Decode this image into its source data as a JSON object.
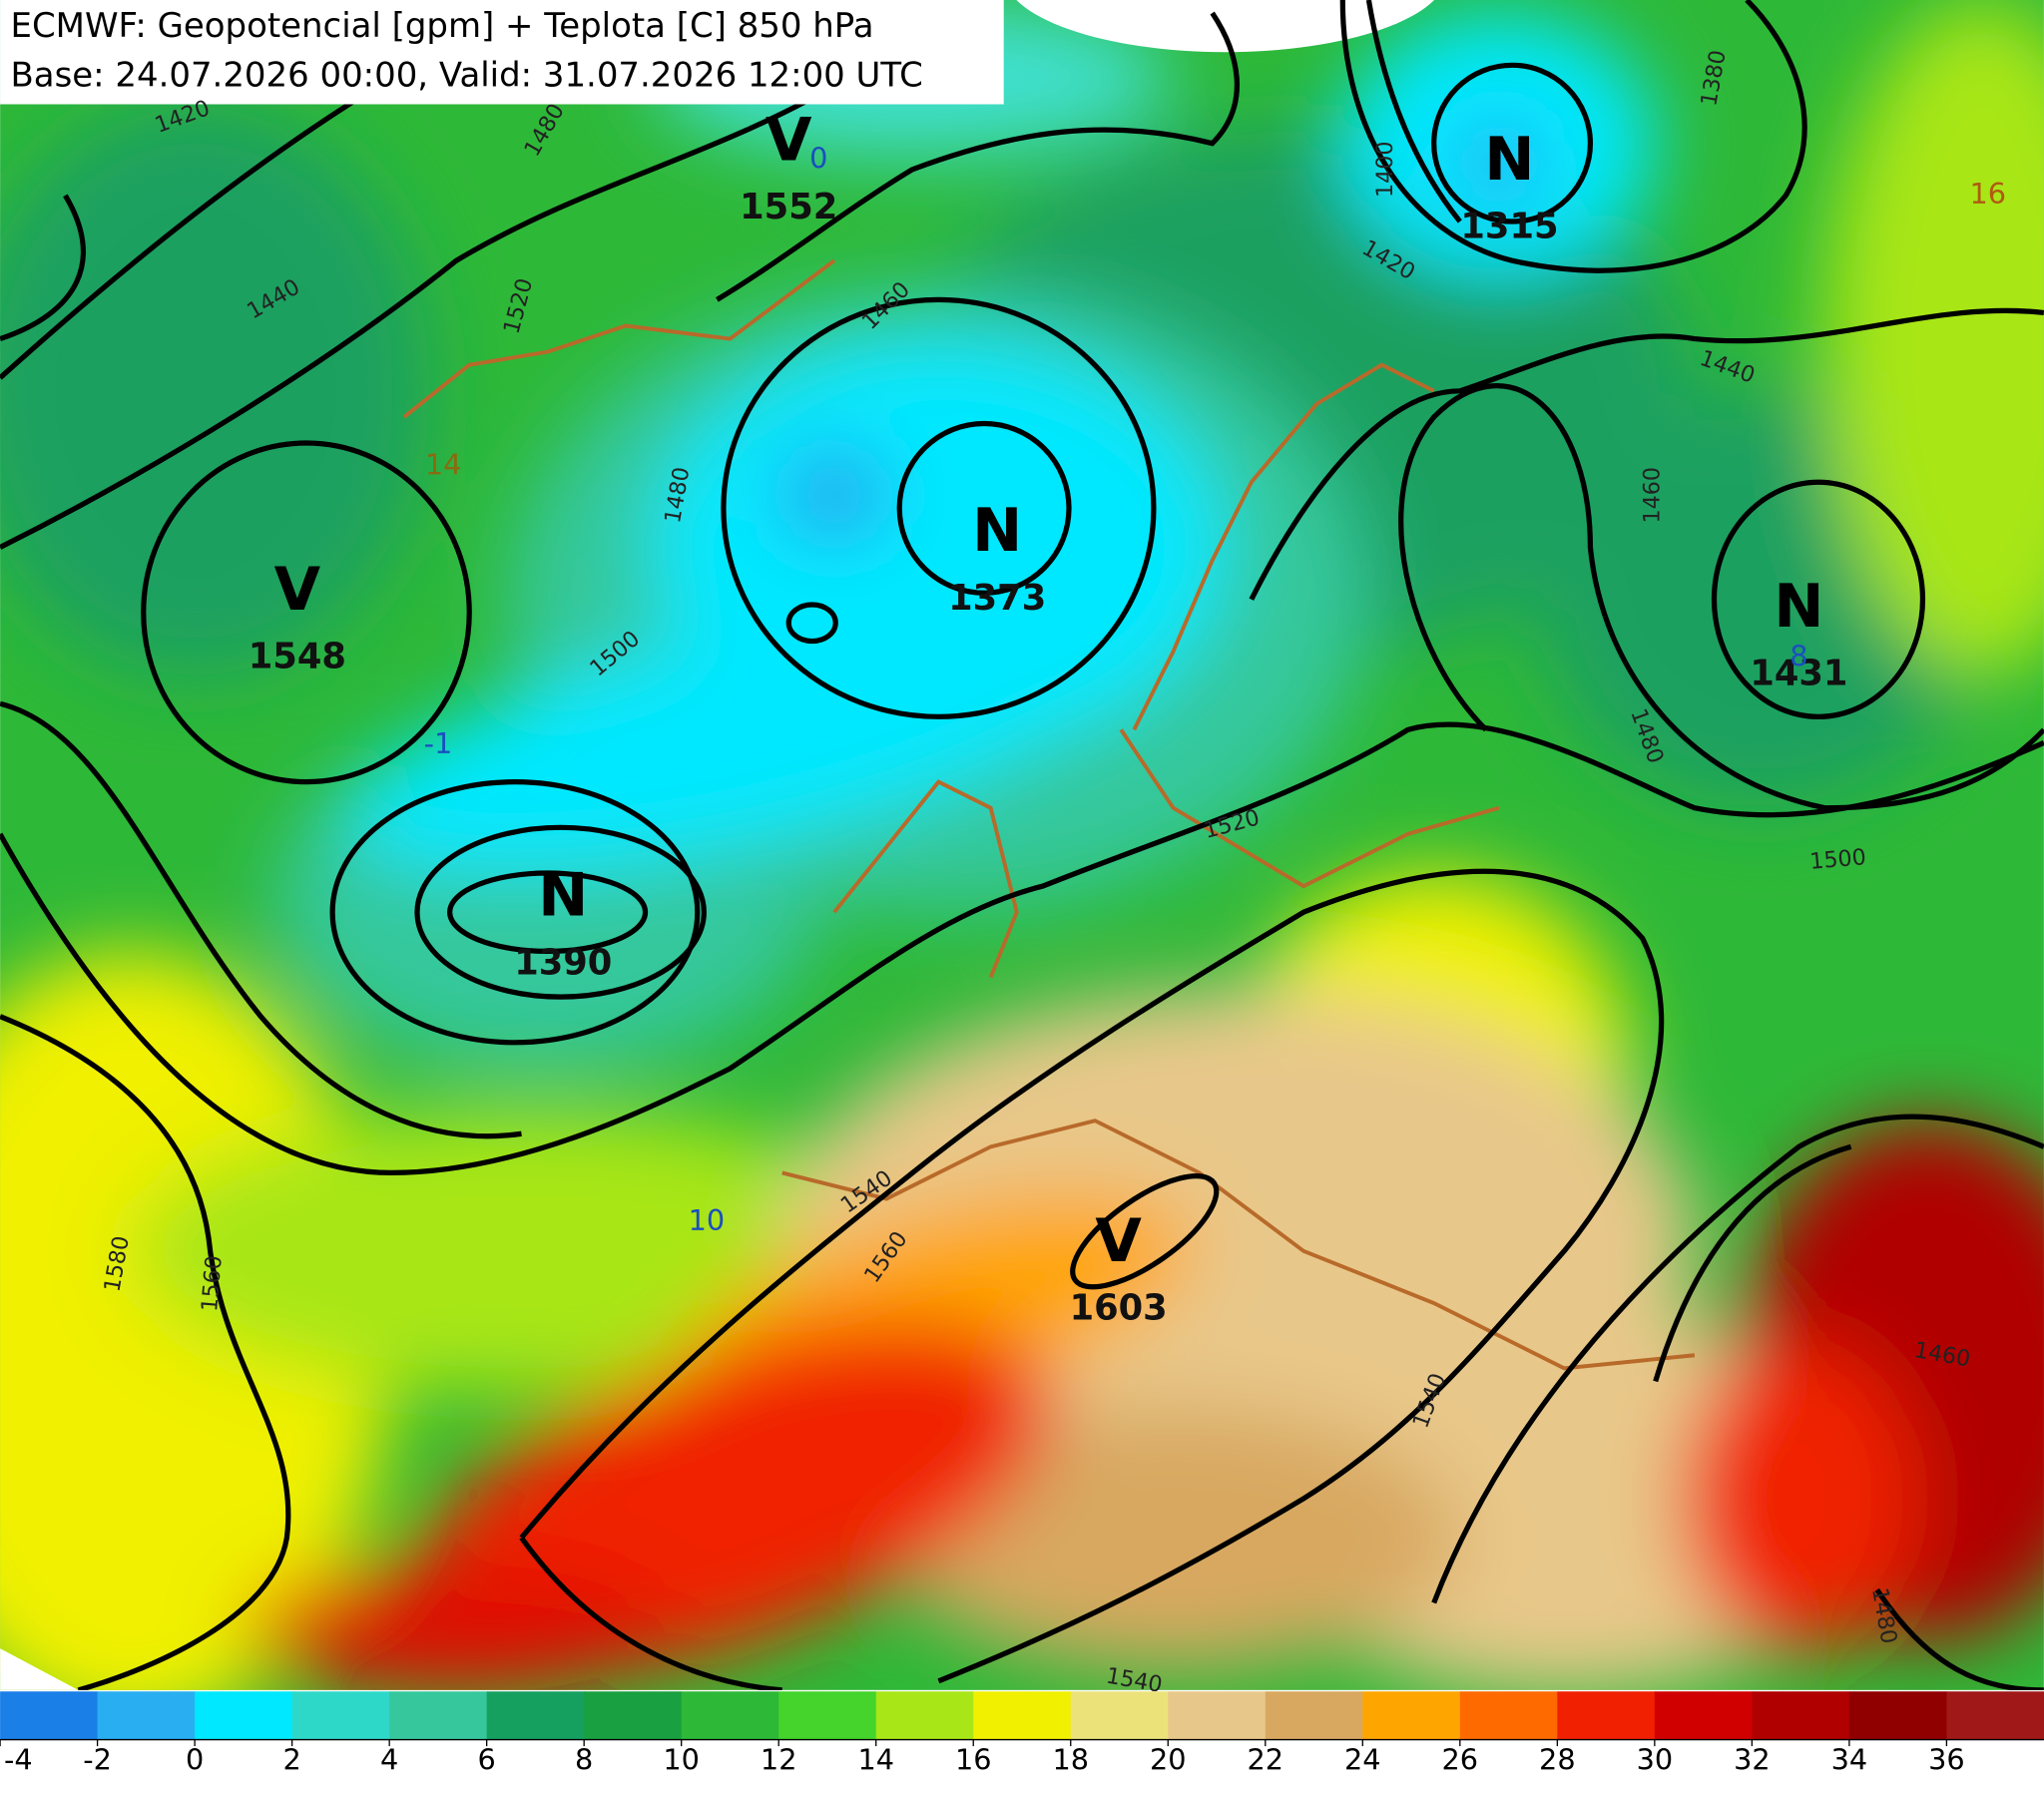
{
  "header": {
    "title": "ECMWF: Geopotencial [gpm] + Teplota [C] 850 hPa",
    "subtitle": "Base: 24.07.2026 00:00, Valid: 31.07.2026 12:00 UTC"
  },
  "centers": [
    {
      "symbol": "V",
      "value": "1552"
    },
    {
      "symbol": "N",
      "value": "1315"
    },
    {
      "symbol": "N",
      "value": "1373"
    },
    {
      "symbol": "V",
      "value": "1548"
    },
    {
      "symbol": "N",
      "value": "1431"
    },
    {
      "symbol": "N",
      "value": "1390"
    },
    {
      "symbol": "V",
      "value": "1603"
    }
  ],
  "contour_labels": [
    "1420",
    "1480",
    "1440",
    "1520",
    "1460",
    "1400",
    "1380",
    "1420",
    "1440",
    "1480",
    "1500",
    "1460",
    "1480",
    "1520",
    "1500",
    "1540",
    "1560",
    "1580",
    "1560",
    "1540",
    "1460",
    "1480",
    "1540"
  ],
  "temperature_labels": [
    "16",
    "14",
    "-1",
    "10",
    "0",
    "8"
  ],
  "colorbar": {
    "labels": [
      "-4",
      "-2",
      "0",
      "2",
      "4",
      "6",
      "8",
      "10",
      "12",
      "14",
      "16",
      "18",
      "20",
      "22",
      "24",
      "26",
      "28",
      "30",
      "32",
      "34",
      "36"
    ],
    "colors": [
      "#1b7fe8",
      "#2aaef2",
      "#00e8ff",
      "#2ed8c8",
      "#36c89c",
      "#16a060",
      "#19a040",
      "#2eb838",
      "#44d42c",
      "#a8e618",
      "#f0f000",
      "#ece27a",
      "#e8c88a",
      "#d8a860",
      "#ffa500",
      "#ff6a00",
      "#f02000",
      "#d00000",
      "#b00000",
      "#900000",
      "#a01818"
    ]
  }
}
